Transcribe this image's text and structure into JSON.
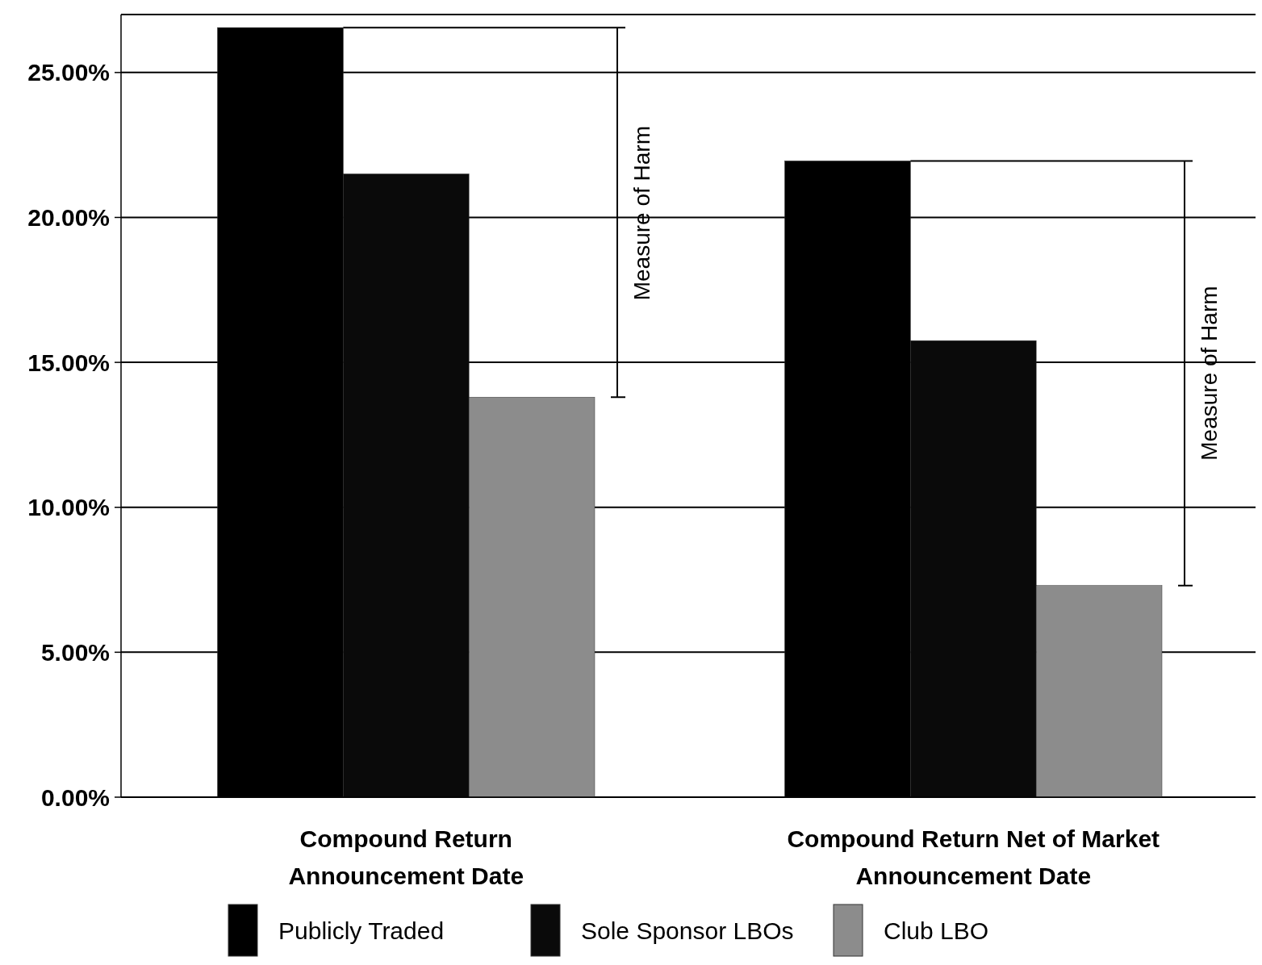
{
  "chart_data": {
    "type": "bar",
    "categories": [
      "Compound Return\nAnnouncement Date",
      "Compound Return Net of Market\nAnnouncement Date"
    ],
    "series": [
      {
        "name": "Publicly Traded",
        "color": "#000000",
        "values": [
          26.55,
          21.95
        ]
      },
      {
        "name": "Sole Sponsor LBOs",
        "color": "#0a0a0a",
        "values": [
          21.5,
          15.75
        ]
      },
      {
        "name": "Club LBO",
        "color": "#8c8c8c",
        "values": [
          13.8,
          7.3
        ]
      }
    ],
    "ylim": [
      0,
      27
    ],
    "yticks": [
      {
        "value": 0,
        "label": "0.00%"
      },
      {
        "value": 5,
        "label": "5.00%"
      },
      {
        "value": 10,
        "label": "10.00%"
      },
      {
        "value": 15,
        "label": "15.00%"
      },
      {
        "value": 20,
        "label": "20.00%"
      },
      {
        "value": 25,
        "label": "25.00%"
      }
    ],
    "grid": "y",
    "legend": "bottom",
    "annotations": [
      "Measure of Harm",
      "Measure of Harm"
    ]
  }
}
